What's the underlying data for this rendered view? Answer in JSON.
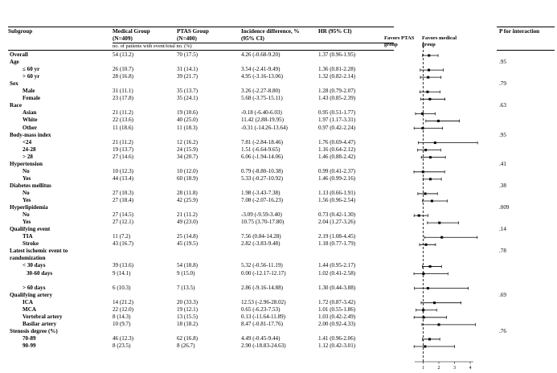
{
  "headers": {
    "subgroup": "Subgroup",
    "medical": "Medical Group (N=409)",
    "ptas": "PTAS Group (N=400)",
    "incidence": "Incidence difference, % (95% CI)",
    "hr": "HR (95% CI)",
    "favors_ptas": "Favors PTAS group",
    "favors_medical": "Favors medical group",
    "p_interaction": "P for interaction",
    "subheader": "no. of patients with event/total no. (%)"
  },
  "axis": {
    "ticks": [
      "1",
      "2",
      "3",
      "4"
    ],
    "min": 0,
    "max": 4,
    "reference": 1
  },
  "rows": [
    {
      "label": "Overall",
      "type": "section",
      "med": "54 (13.2)",
      "ptas": "70 (17.5)",
      "inc": "4.26 (-0.68-9.20)",
      "hr": "1.37 (0.96-1.95)",
      "est": 1.37,
      "lo": 0.96,
      "hi": 1.95,
      "p": ""
    },
    {
      "label": "Age",
      "type": "section",
      "p": ".95"
    },
    {
      "label": "≤ 60 yr",
      "type": "sub",
      "med": "26 (10.7)",
      "ptas": "31 (14.1)",
      "inc": "3.54 (-2.41-9.49)",
      "hr": "1.36 (0.81-2.28)",
      "est": 1.36,
      "lo": 0.81,
      "hi": 2.28
    },
    {
      "label": "> 60 yr",
      "type": "sub",
      "med": "28 (16.8)",
      "ptas": "39 (21.7)",
      "inc": "4.95 (-3.16-13.06)",
      "hr": "1.32 (0.82-2.14)",
      "est": 1.32,
      "lo": 0.82,
      "hi": 2.14
    },
    {
      "label": "Sex",
      "type": "section",
      "p": ".79"
    },
    {
      "label": "Male",
      "type": "sub",
      "med": "31 (11.1)",
      "ptas": "35 (13.7)",
      "inc": "3.26 (-2.27-8.80)",
      "hr": "1.28 (0.79-2.07)",
      "est": 1.28,
      "lo": 0.79,
      "hi": 2.07
    },
    {
      "label": "Female",
      "type": "sub",
      "med": "23 (17.8)",
      "ptas": "35 (24.1)",
      "inc": "5.68 (-3.75-15.11)",
      "hr": "1.43 (0.85-2.39)",
      "est": 1.43,
      "lo": 0.85,
      "hi": 2.39
    },
    {
      "label": "Race",
      "type": "section",
      "p": ".63"
    },
    {
      "label": "Asian",
      "type": "sub",
      "med": "21 (11.2)",
      "ptas": "19 (10.6)",
      "inc": "-0.18 (-6.40-6.03)",
      "hr": "0.95 (0.51-1.77)",
      "est": 0.95,
      "lo": 0.51,
      "hi": 1.77
    },
    {
      "label": "White",
      "type": "sub",
      "med": "22 (13.6)",
      "ptas": "40 (25.0)",
      "inc": "11.42 (2.88-19.95)",
      "hr": "1.97 (1.17-3.31)",
      "est": 1.97,
      "lo": 1.17,
      "hi": 3.31
    },
    {
      "label": "Other",
      "type": "sub",
      "med": "11 (18.6)",
      "ptas": "11 (18.3)",
      "inc": "-0.31 (-14.26-13.64)",
      "hr": "0.97 (0.42-2.24)",
      "est": 0.97,
      "lo": 0.42,
      "hi": 2.24
    },
    {
      "label": "Body-mass index",
      "type": "section",
      "p": ".95"
    },
    {
      "label": "<24",
      "type": "sub",
      "med": "21 (11.2)",
      "ptas": "12 (16.2)",
      "inc": "7.81 (-2.84-18.46)",
      "hr": "1.76 (0.69-4.47)",
      "est": 1.76,
      "lo": 0.69,
      "hi": 4.47
    },
    {
      "label": "24-28",
      "type": "sub",
      "med": "19 (13.7)",
      "ptas": "24 (15.9)",
      "inc": "1.51 (-6.64-9.65)",
      "hr": "1.16 (0.64-2.12)",
      "est": 1.16,
      "lo": 0.64,
      "hi": 2.12
    },
    {
      "label": "> 28",
      "type": "sub",
      "med": "27 (14.6)",
      "ptas": "34 (20.7)",
      "inc": "6.06 (-1.94-14.06)",
      "hr": "1.46 (0.88-2.42)",
      "est": 1.46,
      "lo": 0.88,
      "hi": 2.42
    },
    {
      "label": "Hypertension",
      "type": "section",
      "p": ".41"
    },
    {
      "label": "No",
      "type": "sub",
      "med": "10 (12.3)",
      "ptas": "10 (12.0)",
      "inc": "0.79 (-8.80-10.38)",
      "hr": "0.99 (0.41-2.37)",
      "est": 0.99,
      "lo": 0.41,
      "hi": 2.37
    },
    {
      "label": "Yes",
      "type": "sub",
      "med": "44 (13.4)",
      "ptas": "60 (18.9)",
      "inc": "5.33 (-0.27-10.92)",
      "hr": "1.46 (0.99-2.16)",
      "est": 1.46,
      "lo": 0.99,
      "hi": 2.16
    },
    {
      "label": "Diabetes mellitus",
      "type": "section",
      "p": ".38"
    },
    {
      "label": "No",
      "type": "sub",
      "med": "27 (10.3)",
      "ptas": "28 (11.8)",
      "inc": "1.98 (-3.43-7.38)",
      "hr": "1.13 (0.66-1.91)",
      "est": 1.13,
      "lo": 0.66,
      "hi": 1.91
    },
    {
      "label": "Yes",
      "type": "sub",
      "med": "27 (18.4)",
      "ptas": "42 (25.9)",
      "inc": "7.08 (-2.07-16.23)",
      "hr": "1.56 (0.96-2.54)",
      "est": 1.56,
      "lo": 0.96,
      "hi": 2.54
    },
    {
      "label": "Hyperlipidemia",
      "type": "section",
      "p": ".009"
    },
    {
      "label": "No",
      "type": "sub",
      "med": "27 (14.5)",
      "ptas": "21 (11.2)",
      "inc": "-3.09 (-9.59-3.40)",
      "hr": "0.73 (0.42-1.30)",
      "est": 0.73,
      "lo": 0.42,
      "hi": 1.3
    },
    {
      "label": "Yes",
      "type": "sub",
      "med": "27 (12.1)",
      "ptas": "49 (23.0)",
      "inc": "10.75 (3.70-17.80)",
      "hr": "2.04 (1.27-3.26)",
      "est": 2.04,
      "lo": 1.27,
      "hi": 3.26
    },
    {
      "label": "Qualifying event",
      "type": "section",
      "p": ".14"
    },
    {
      "label": "TIA",
      "type": "sub",
      "med": "11 (7.2)",
      "ptas": "25 (14.8)",
      "inc": "7.56 (0.84-14.28)",
      "hr": "2.19 (1.08-4.45)",
      "est": 2.19,
      "lo": 1.08,
      "hi": 4.45
    },
    {
      "label": "Stroke",
      "type": "sub",
      "med": "43 (16.7)",
      "ptas": "45 (19.5)",
      "inc": "2.82 (-3.83-9.48)",
      "hr": "1.18 (0.77-1.79)",
      "est": 1.18,
      "lo": 0.77,
      "hi": 1.79
    },
    {
      "label": "Latest ischemic event to",
      "type": "section",
      "p": ".78"
    },
    {
      "label": "randomization",
      "type": "section"
    },
    {
      "label": "< 30 days",
      "type": "sub",
      "med": "39 (13.6)",
      "ptas": "54 (18.8)",
      "inc": "5.32 (-0.56-11.19)",
      "hr": "1.44 (0.95-2.17)",
      "est": 1.44,
      "lo": 0.95,
      "hi": 2.17
    },
    {
      "label": "30-60 days",
      "type": "sub2",
      "med": "9 (14.1)",
      "ptas": "9 (15.0)",
      "inc": "0.00 (-12.17-12.17)",
      "hr": "1.02 (0.41-2.58)",
      "est": 1.02,
      "lo": 0.41,
      "hi": 2.58
    },
    {
      "label": "",
      "type": "blank"
    },
    {
      "label": "> 60 days",
      "type": "sub",
      "med": "6 (10.3)",
      "ptas": "7 (13.5)",
      "inc": "2.86 (-9.16-14.88)",
      "hr": "1.30 (0.44-3.88)",
      "est": 1.3,
      "lo": 0.44,
      "hi": 3.88
    },
    {
      "label": "Qualifying artery",
      "type": "section",
      "p": ".69"
    },
    {
      "label": "ICA",
      "type": "sub",
      "med": "14 (21.2)",
      "ptas": "20 (33.3)",
      "inc": "12.53 (-2.96-28.02)",
      "hr": "1.72 (0.87-3.42)",
      "est": 1.72,
      "lo": 0.87,
      "hi": 3.42
    },
    {
      "label": "MCA",
      "type": "sub",
      "med": "22 (12.0)",
      "ptas": "19 (12.1)",
      "inc": "0.65 (-6.23-7.53)",
      "hr": "1.01 (0.55-1.86)",
      "est": 1.01,
      "lo": 0.55,
      "hi": 1.86
    },
    {
      "label": "Vertebral artery",
      "type": "sub",
      "med": "8 (14.3)",
      "ptas": "13 (15.5)",
      "inc": "0.13 (-11.64-11.89)",
      "hr": "1.03 (0.42-2.49)",
      "est": 1.03,
      "lo": 0.42,
      "hi": 2.49
    },
    {
      "label": "Basilar artery",
      "type": "sub",
      "med": "10 (9.7)",
      "ptas": "18 (18.2)",
      "inc": "8.47 (-0.81-17.76)",
      "hr": "2.00 (0.92-4.33)",
      "est": 2.0,
      "lo": 0.92,
      "hi": 4.33
    },
    {
      "label": "Stenosis degree (%)",
      "type": "section",
      "p": ".76"
    },
    {
      "label": "70-89",
      "type": "sub",
      "med": "46 (12.3)",
      "ptas": "62 (16.8)",
      "inc": "4.49 (-0.45-9.44)",
      "hr": "1.41 (0.96-2.06)",
      "est": 1.41,
      "lo": 0.96,
      "hi": 2.06
    },
    {
      "label": "90-99",
      "type": "sub",
      "med": "8 (23.5)",
      "ptas": "8 (26.7)",
      "inc": "2.90 (-18.83-24.63)",
      "hr": "1.12 (0.42-3.01)",
      "est": 1.12,
      "lo": 0.42,
      "hi": 3.01
    }
  ]
}
